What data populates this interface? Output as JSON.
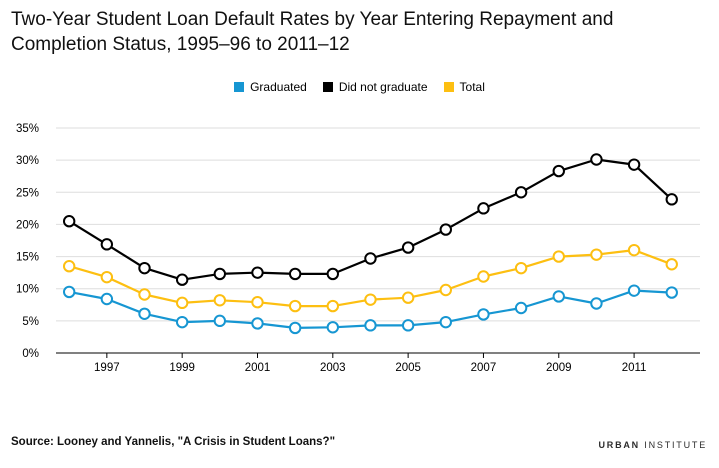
{
  "title": "Two-Year Student Loan Default Rates by Year Entering Repayment and Completion Status, 1995–96 to 2011–12",
  "source": "Source: Looney and Yannelis, \"A Crisis in Student Loans?\"",
  "brand": {
    "bold": "URBAN",
    "light": "INSTITUTE"
  },
  "colors": {
    "graduated": "#1696d2",
    "did_not_graduate": "#000000",
    "total": "#fdbf11",
    "grid": "#dedede",
    "axis": "#000000"
  },
  "chart_data": {
    "type": "line",
    "title": "Two-Year Student Loan Default Rates by Year Entering Repayment and Completion Status, 1995–96 to 2011–12",
    "xlabel": "",
    "ylabel": "",
    "x": [
      1996,
      1997,
      1998,
      1999,
      2000,
      2001,
      2002,
      2003,
      2004,
      2005,
      2006,
      2007,
      2008,
      2009,
      2010,
      2011,
      2012
    ],
    "xticks": [
      "1997",
      "1999",
      "2001",
      "2003",
      "2005",
      "2007",
      "2009",
      "2011"
    ],
    "ylim": [
      0,
      35
    ],
    "yticks": [
      {
        "value": 0,
        "label": "0%"
      },
      {
        "value": 5,
        "label": "5%"
      },
      {
        "value": 10,
        "label": "10%"
      },
      {
        "value": 15,
        "label": "15%"
      },
      {
        "value": 20,
        "label": "20%"
      },
      {
        "value": 25,
        "label": "25%"
      },
      {
        "value": 30,
        "label": "30%"
      },
      {
        "value": 35,
        "label": "35%"
      }
    ],
    "grid": true,
    "legend_position": "top-center",
    "series": [
      {
        "name": "Graduated",
        "key": "graduated",
        "values": [
          9.5,
          8.4,
          6.1,
          4.8,
          5.0,
          4.6,
          3.9,
          4.0,
          4.3,
          4.3,
          4.8,
          6.0,
          7.0,
          8.8,
          7.7,
          9.7,
          9.4
        ]
      },
      {
        "name": "Did not graduate",
        "key": "did_not_graduate",
        "values": [
          20.5,
          16.9,
          13.2,
          11.4,
          12.3,
          12.5,
          12.3,
          12.3,
          14.7,
          16.4,
          19.2,
          22.5,
          25.0,
          28.3,
          30.1,
          29.3,
          23.9
        ]
      },
      {
        "name": "Total",
        "key": "total",
        "values": [
          13.5,
          11.8,
          9.1,
          7.8,
          8.2,
          7.9,
          7.3,
          7.3,
          8.3,
          8.6,
          9.8,
          11.9,
          13.2,
          15.0,
          15.3,
          16.0,
          13.8
        ]
      }
    ]
  }
}
